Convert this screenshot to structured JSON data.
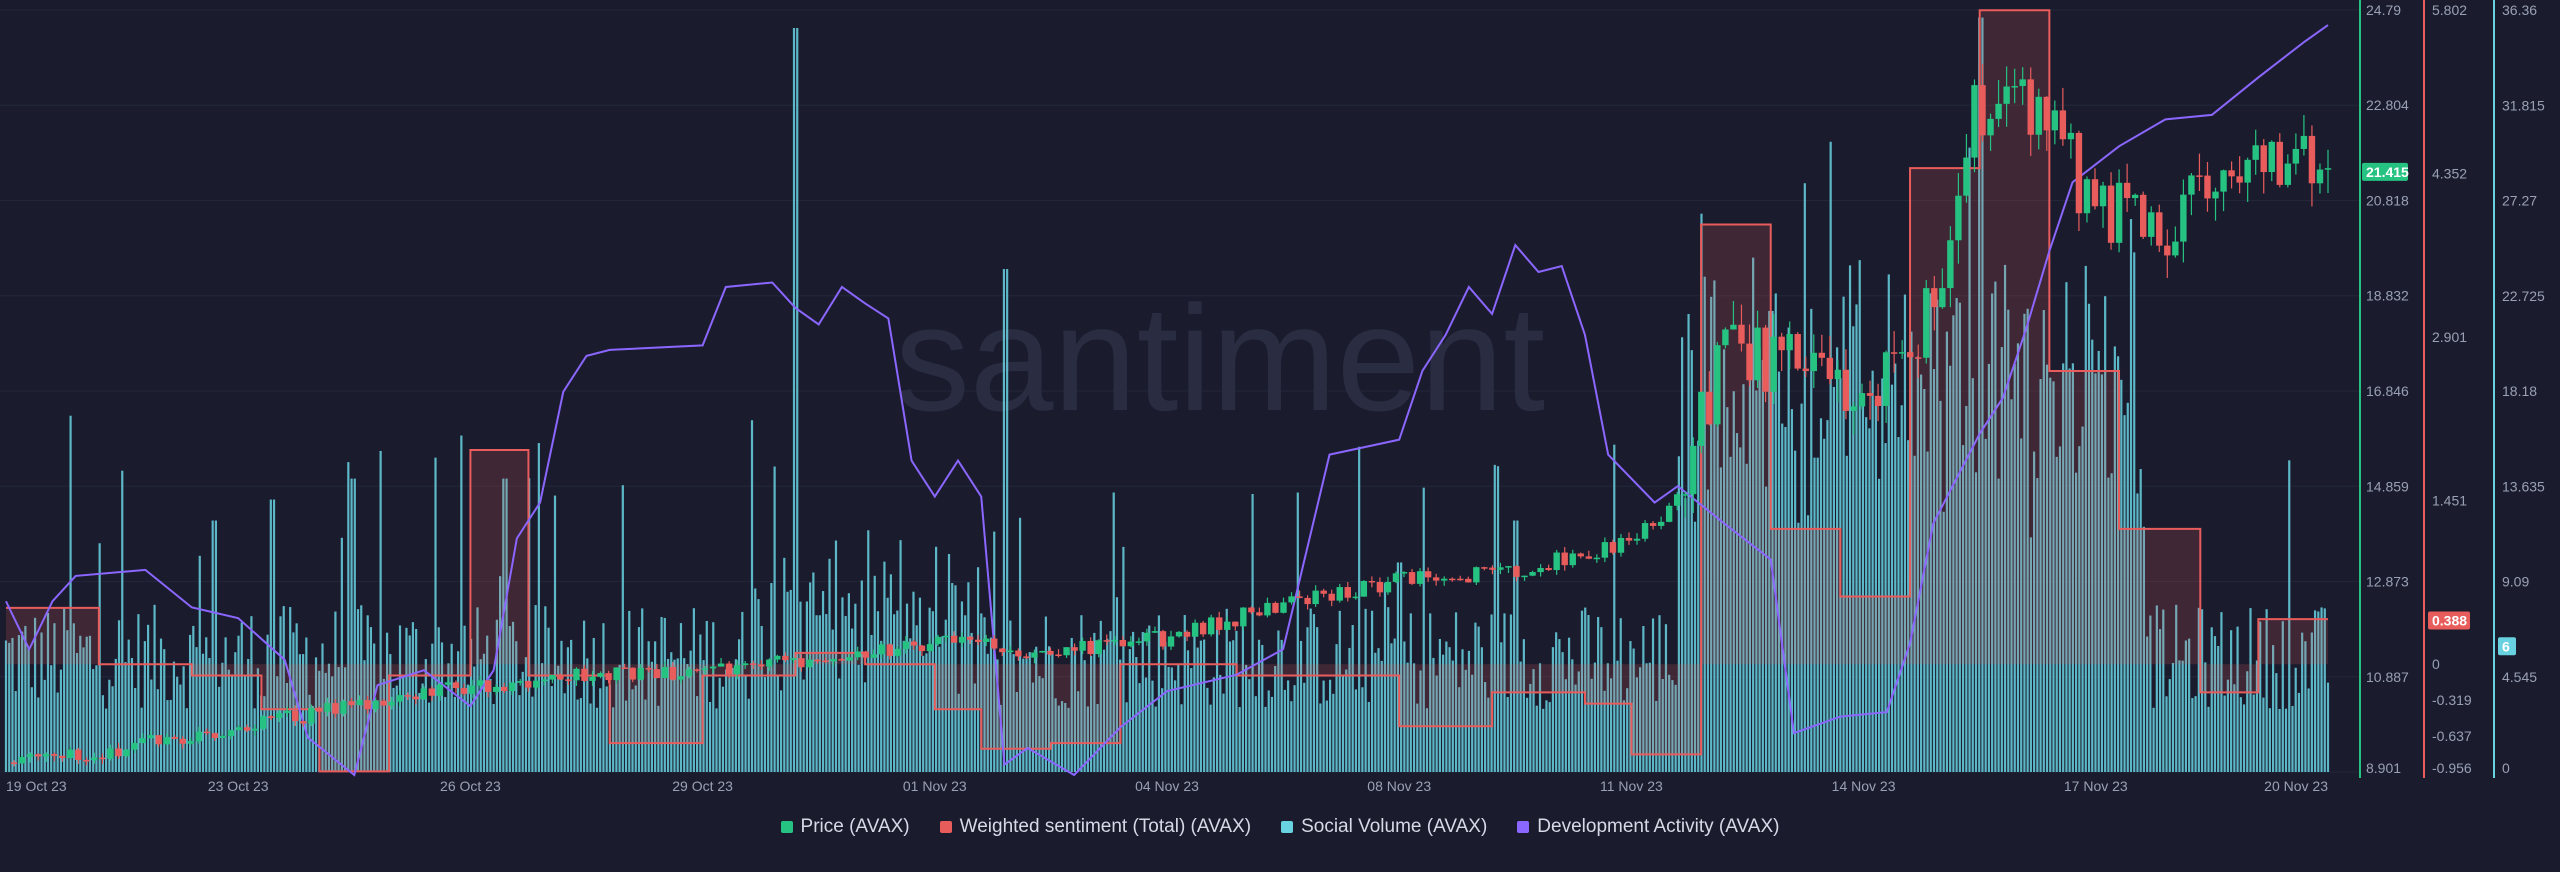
{
  "watermark": "santiment",
  "chart_data": {
    "type": "line",
    "title": "",
    "x_tick_labels": [
      "19 Oct 23",
      "23 Oct 23",
      "26 Oct 23",
      "29 Oct 23",
      "01 Nov 23",
      "04 Nov 23",
      "08 Nov 23",
      "11 Nov 23",
      "14 Nov 23",
      "17 Nov 23",
      "20 Nov 23"
    ],
    "legend": [
      {
        "name": "Price (AVAX)",
        "color": "#26c281"
      },
      {
        "name": "Weighted sentiment (Total) (AVAX)",
        "color": "#e85c5c"
      },
      {
        "name": "Social Volume (AVAX)",
        "color": "#68d2e0"
      },
      {
        "name": "Development Activity (AVAX)",
        "color": "#8b66ff"
      }
    ],
    "axes": {
      "price": {
        "ticks": [
          "24.79",
          "22.804",
          "20.818",
          "18.832",
          "16.846",
          "14.859",
          "12.873",
          "10.887",
          "8.901"
        ],
        "color": "#26c281",
        "current_label": "21.415",
        "current_value": 21.415
      },
      "sentiment": {
        "ticks": [
          "5.802",
          "4.352",
          "2.901",
          "1.451",
          "0",
          "-0.319",
          "-0.637",
          "-0.956"
        ],
        "color": "#e85c5c",
        "current_label": "0.388",
        "current_value": 0.388
      },
      "social_volume": {
        "ticks": [
          "36.36",
          "31.815",
          "27.27",
          "22.725",
          "18.18",
          "13.635",
          "9.09",
          "4.545",
          "0"
        ],
        "color": "#68d2e0",
        "current_label": "6",
        "current_value": 6
      }
    },
    "series": [
      {
        "name": "Price (AVAX)",
        "kind": "candlestick",
        "approx_close_trajectory": [
          [
            0,
            9.1
          ],
          [
            0.05,
            9.4
          ],
          [
            0.1,
            9.8
          ],
          [
            0.15,
            10.3
          ],
          [
            0.2,
            10.7
          ],
          [
            0.25,
            10.9
          ],
          [
            0.3,
            11.0
          ],
          [
            0.35,
            11.3
          ],
          [
            0.4,
            11.6
          ],
          [
            0.45,
            11.4
          ],
          [
            0.5,
            11.7
          ],
          [
            0.55,
            12.4
          ],
          [
            0.6,
            12.9
          ],
          [
            0.65,
            13.1
          ],
          [
            0.7,
            13.7
          ],
          [
            0.72,
            14.6
          ],
          [
            0.74,
            17.5
          ],
          [
            0.76,
            17.4
          ],
          [
            0.8,
            16.8
          ],
          [
            0.83,
            18.5
          ],
          [
            0.85,
            23.0
          ],
          [
            0.88,
            22.3
          ],
          [
            0.9,
            20.5
          ],
          [
            0.93,
            20.3
          ],
          [
            0.96,
            21.4
          ],
          [
            1.0,
            21.4
          ]
        ]
      },
      {
        "name": "Weighted sentiment (Total) (AVAX)",
        "kind": "step",
        "steps": [
          [
            0,
            0.5
          ],
          [
            0.04,
            0
          ],
          [
            0.08,
            -0.1
          ],
          [
            0.11,
            -0.4
          ],
          [
            0.135,
            -0.95
          ],
          [
            0.165,
            -0.1
          ],
          [
            0.2,
            1.9
          ],
          [
            0.225,
            -0.1
          ],
          [
            0.26,
            -0.7
          ],
          [
            0.3,
            -0.1
          ],
          [
            0.34,
            0.1
          ],
          [
            0.37,
            0
          ],
          [
            0.4,
            -0.4
          ],
          [
            0.42,
            -0.75
          ],
          [
            0.45,
            -0.7
          ],
          [
            0.48,
            0
          ],
          [
            0.53,
            -0.1
          ],
          [
            0.6,
            -0.55
          ],
          [
            0.64,
            -0.25
          ],
          [
            0.68,
            -0.35
          ],
          [
            0.7,
            -0.8
          ],
          [
            0.73,
            3.9
          ],
          [
            0.76,
            1.2
          ],
          [
            0.79,
            0.6
          ],
          [
            0.82,
            4.4
          ],
          [
            0.85,
            5.8
          ],
          [
            0.88,
            2.6
          ],
          [
            0.91,
            1.2
          ],
          [
            0.945,
            -0.25
          ],
          [
            0.97,
            0.4
          ],
          [
            1.0,
            0.388
          ]
        ]
      },
      {
        "name": "Development Activity (AVAX)",
        "kind": "line",
        "points": [
          [
            0,
            8
          ],
          [
            0.01,
            6
          ],
          [
            0.02,
            8
          ],
          [
            0.03,
            9.5
          ],
          [
            0.06,
            9.5
          ],
          [
            0.08,
            8
          ],
          [
            0.1,
            7.2
          ],
          [
            0.12,
            5.5
          ],
          [
            0.13,
            1.5
          ],
          [
            0.15,
            0
          ],
          [
            0.16,
            4
          ],
          [
            0.18,
            5
          ],
          [
            0.2,
            3
          ],
          [
            0.21,
            5
          ],
          [
            0.22,
            11
          ],
          [
            0.23,
            13
          ],
          [
            0.24,
            18
          ],
          [
            0.25,
            20
          ],
          [
            0.26,
            20
          ],
          [
            0.3,
            20.5
          ],
          [
            0.31,
            23
          ],
          [
            0.33,
            23.5
          ],
          [
            0.34,
            22
          ],
          [
            0.35,
            21.5
          ],
          [
            0.36,
            23
          ],
          [
            0.37,
            22.5
          ],
          [
            0.38,
            21.5
          ],
          [
            0.39,
            15
          ],
          [
            0.4,
            13
          ],
          [
            0.41,
            15
          ],
          [
            0.42,
            13
          ],
          [
            0.43,
            0.5
          ],
          [
            0.44,
            1
          ],
          [
            0.46,
            0
          ],
          [
            0.48,
            2
          ],
          [
            0.5,
            4
          ],
          [
            0.53,
            4.5
          ],
          [
            0.55,
            6
          ],
          [
            0.57,
            15
          ],
          [
            0.6,
            16
          ],
          [
            0.61,
            19
          ],
          [
            0.62,
            21
          ],
          [
            0.63,
            23
          ],
          [
            0.64,
            22
          ],
          [
            0.65,
            25
          ],
          [
            0.66,
            24
          ],
          [
            0.67,
            24
          ],
          [
            0.68,
            21
          ],
          [
            0.69,
            15
          ],
          [
            0.71,
            13
          ],
          [
            0.72,
            13.5
          ],
          [
            0.74,
            12
          ],
          [
            0.76,
            10
          ],
          [
            0.77,
            2
          ],
          [
            0.79,
            2.5
          ],
          [
            0.81,
            3
          ],
          [
            0.82,
            6
          ],
          [
            0.83,
            12
          ],
          [
            0.85,
            16
          ],
          [
            0.86,
            18
          ],
          [
            0.87,
            21
          ],
          [
            0.88,
            25
          ],
          [
            0.89,
            28
          ],
          [
            0.91,
            30
          ],
          [
            0.93,
            31
          ],
          [
            0.95,
            31.5
          ],
          [
            0.97,
            33
          ],
          [
            0.99,
            35
          ],
          [
            1.0,
            35.5
          ]
        ]
      },
      {
        "name": "Social Volume (AVAX)",
        "kind": "bar",
        "peak_positions": [
          [
            0.028,
            17
          ],
          [
            0.09,
            12
          ],
          [
            0.115,
            13
          ],
          [
            0.15,
            14
          ],
          [
            0.185,
            15
          ],
          [
            0.215,
            14
          ],
          [
            0.34,
            35.5
          ],
          [
            0.43,
            24
          ],
          [
            0.6,
            10
          ],
          [
            0.65,
            12
          ],
          [
            0.76,
            22
          ],
          [
            0.78,
            15
          ],
          [
            0.85,
            36
          ],
          [
            0.89,
            19.5
          ]
        ]
      }
    ]
  }
}
